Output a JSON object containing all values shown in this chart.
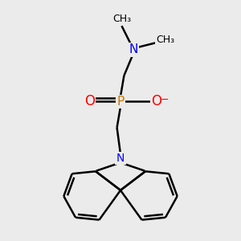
{
  "background_color": "#ebebeb",
  "atom_colors": {
    "C": "#000000",
    "N": "#0000ff",
    "O": "#ff0000",
    "P": "#cc7700"
  },
  "bond_color": "#000000",
  "line_width": 1.8,
  "figsize": [
    3.0,
    3.0
  ],
  "dpi": 100
}
